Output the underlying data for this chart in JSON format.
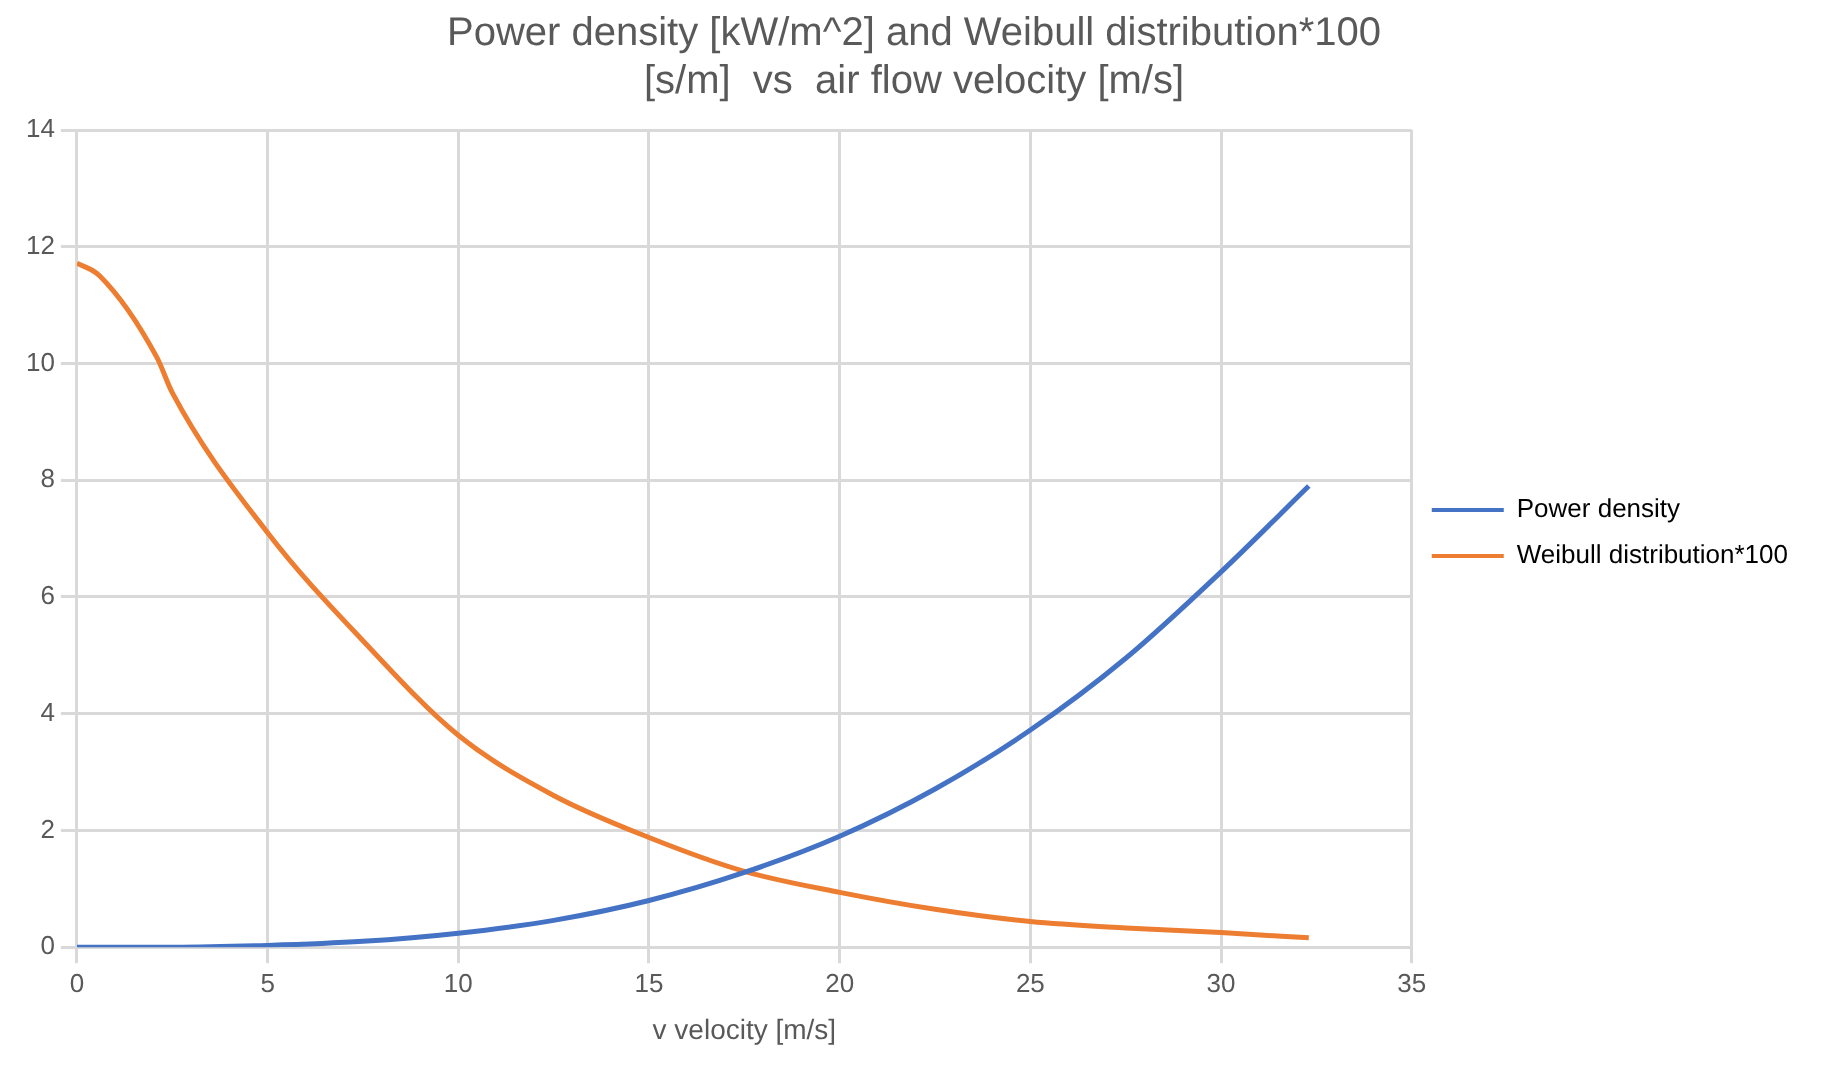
{
  "chart_data": {
    "type": "line",
    "title": [
      "Power density [kW/m^2] and Weibull distribution*100",
      "[s/m]  vs  air flow velocity [m/s]"
    ],
    "xlabel": "v velocity [m/s]",
    "xlim": [
      0,
      35
    ],
    "xticks": [
      0,
      5,
      10,
      15,
      20,
      25,
      30,
      35
    ],
    "ylim": [
      0,
      14
    ],
    "yticks": [
      0,
      2,
      4,
      6,
      8,
      10,
      12,
      14
    ],
    "grid": true,
    "legend": "right",
    "marker": "none",
    "series": [
      {
        "name": "Power density",
        "color": "#4472c4",
        "x": [
          0,
          2.5,
          5,
          7.5,
          10,
          12.5,
          15,
          17.5,
          20,
          22.5,
          25,
          27.5,
          30,
          32.3
        ],
        "values": [
          0,
          0,
          0.03,
          0.1,
          0.24,
          0.46,
          0.8,
          1.28,
          1.9,
          2.71,
          3.72,
          4.95,
          6.43,
          7.9
        ]
      },
      {
        "name": "Weibull distribution*100",
        "color": "#ed7d31",
        "x": [
          0,
          0.6,
          2.1,
          2.5,
          5,
          7.5,
          10,
          12.5,
          15,
          17.5,
          20,
          22.5,
          25,
          27.5,
          30,
          32.3
        ],
        "values": [
          11.72,
          11.5,
          10.1,
          9.5,
          7.1,
          5.25,
          3.63,
          2.6,
          1.88,
          1.3,
          0.94,
          0.65,
          0.44,
          0.33,
          0.25,
          0.16
        ]
      }
    ]
  }
}
